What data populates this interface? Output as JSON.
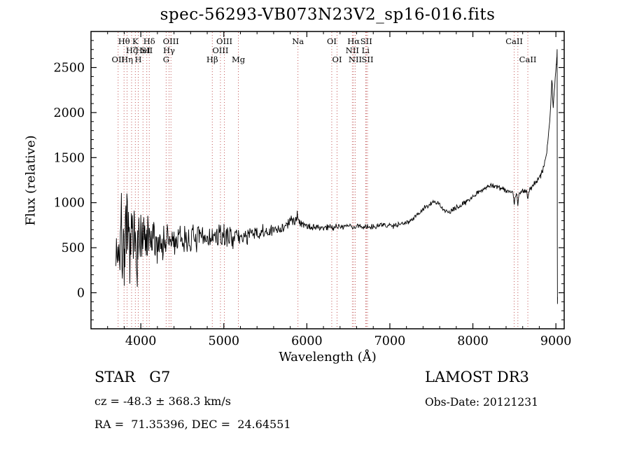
{
  "header": {
    "title": "spec-56293-VB073N23V2_sp16-016.fits"
  },
  "footer": {
    "class_label": "STAR   G7",
    "survey": "LAMOST DR3",
    "cz": "cz = -48.3 ± 368.3 km/s",
    "obs_date": "Obs-Date: 20121231",
    "radec": "RA =  71.35396, DEC =  24.64551"
  },
  "chart_data": {
    "type": "line",
    "title": "spec-56293-VB073N23V2_sp16-016.fits",
    "xlabel": "Wavelength (Å)",
    "ylabel": "Flux (relative)",
    "xlim": [
      3400,
      9100
    ],
    "ylim": [
      -400,
      2900
    ],
    "xticks": [
      4000,
      5000,
      6000,
      7000,
      8000,
      9000
    ],
    "yticks": [
      0,
      500,
      1000,
      1500,
      2000,
      2500
    ],
    "x_minor_step": 200,
    "y_minor_step": 100,
    "grid": false,
    "legend": false,
    "line_color": "#000000",
    "marker_color": "#bb4444",
    "sample_step": 6,
    "data_range": [
      3700,
      9020
    ],
    "spectral_lines": [
      {
        "wl": 3727,
        "label": "OII",
        "row": 3
      },
      {
        "wl": 3798,
        "label": "Hθ",
        "row": 1
      },
      {
        "wl": 3835,
        "label": "Hη",
        "row": 3
      },
      {
        "wl": 3889,
        "label": "Hζ",
        "row": 2
      },
      {
        "wl": 3934,
        "label": "K",
        "row": 1
      },
      {
        "wl": 3969,
        "label": "H",
        "row": 3
      },
      {
        "wl": 4026,
        "label": "HeI",
        "row": 2
      },
      {
        "wl": 4072,
        "label": "SII",
        "row": 2
      },
      {
        "wl": 4102,
        "label": "Hδ",
        "row": 1
      },
      {
        "wl": 4305,
        "label": "G",
        "row": 3
      },
      {
        "wl": 4340,
        "label": "Hγ",
        "row": 2
      },
      {
        "wl": 4363,
        "label": "OIII",
        "row": 1
      },
      {
        "wl": 4861,
        "label": "Hβ",
        "row": 3
      },
      {
        "wl": 4959,
        "label": "OIII",
        "row": 2
      },
      {
        "wl": 5007,
        "label": "OIII",
        "row": 1
      },
      {
        "wl": 5175,
        "label": "Mg",
        "row": 3
      },
      {
        "wl": 5893,
        "label": "Na",
        "row": 1
      },
      {
        "wl": 6300,
        "label": "OI",
        "row": 1
      },
      {
        "wl": 6364,
        "label": "OI",
        "row": 3
      },
      {
        "wl": 6548,
        "label": "NII",
        "row": 2
      },
      {
        "wl": 6563,
        "label": "Hα",
        "row": 1
      },
      {
        "wl": 6583,
        "label": "NII",
        "row": 3
      },
      {
        "wl": 6708,
        "label": "Li",
        "row": 2
      },
      {
        "wl": 6716,
        "label": "SII",
        "row": 1
      },
      {
        "wl": 6731,
        "label": "SII",
        "row": 3
      },
      {
        "wl": 8498,
        "label": "CaII",
        "row": 1
      },
      {
        "wl": 8542,
        "label": "",
        "row": 0
      },
      {
        "wl": 8662,
        "label": "CaII",
        "row": 3
      }
    ],
    "continuum": [
      [
        3700,
        540
      ],
      [
        3730,
        520
      ],
      [
        3760,
        545
      ],
      [
        3800,
        525
      ],
      [
        3840,
        535
      ],
      [
        3880,
        525
      ],
      [
        3920,
        540
      ],
      [
        3960,
        530
      ],
      [
        4000,
        540
      ],
      [
        4060,
        545
      ],
      [
        4120,
        550
      ],
      [
        4200,
        555
      ],
      [
        4300,
        560
      ],
      [
        4400,
        570
      ],
      [
        4500,
        580
      ],
      [
        4600,
        592
      ],
      [
        4700,
        602
      ],
      [
        4800,
        612
      ],
      [
        4860,
        605
      ],
      [
        4900,
        618
      ],
      [
        5000,
        628
      ],
      [
        5100,
        632
      ],
      [
        5175,
        612
      ],
      [
        5260,
        632
      ],
      [
        5350,
        645
      ],
      [
        5450,
        658
      ],
      [
        5550,
        672
      ],
      [
        5650,
        700
      ],
      [
        5750,
        745
      ],
      [
        5830,
        805
      ],
      [
        5880,
        845
      ],
      [
        5905,
        815
      ],
      [
        5940,
        775
      ],
      [
        5990,
        748
      ],
      [
        6060,
        728
      ],
      [
        6150,
        720
      ],
      [
        6250,
        730
      ],
      [
        6350,
        738
      ],
      [
        6450,
        737
      ],
      [
        6520,
        742
      ],
      [
        6563,
        726
      ],
      [
        6620,
        738
      ],
      [
        6700,
        732
      ],
      [
        6800,
        740
      ],
      [
        6900,
        748
      ],
      [
        7000,
        747
      ],
      [
        7100,
        758
      ],
      [
        7200,
        782
      ],
      [
        7300,
        840
      ],
      [
        7400,
        925
      ],
      [
        7480,
        980
      ],
      [
        7540,
        1005
      ],
      [
        7590,
        985
      ],
      [
        7650,
        925
      ],
      [
        7700,
        888
      ],
      [
        7760,
        915
      ],
      [
        7840,
        960
      ],
      [
        7920,
        1015
      ],
      [
        8000,
        1072
      ],
      [
        8080,
        1125
      ],
      [
        8160,
        1172
      ],
      [
        8220,
        1192
      ],
      [
        8290,
        1180
      ],
      [
        8360,
        1155
      ],
      [
        8430,
        1128
      ],
      [
        8480,
        1112
      ],
      [
        8492,
        1055
      ],
      [
        8498,
        985
      ],
      [
        8506,
        1075
      ],
      [
        8530,
        1085
      ],
      [
        8542,
        955
      ],
      [
        8554,
        1090
      ],
      [
        8600,
        1132
      ],
      [
        8645,
        1140
      ],
      [
        8662,
        1045
      ],
      [
        8672,
        1105
      ],
      [
        8700,
        1165
      ],
      [
        8740,
        1205
      ],
      [
        8780,
        1245
      ],
      [
        8820,
        1310
      ],
      [
        8860,
        1420
      ],
      [
        8895,
        1600
      ],
      [
        8920,
        1830
      ],
      [
        8938,
        2080
      ],
      [
        8948,
        2320
      ],
      [
        8953,
        2370
      ],
      [
        8960,
        2180
      ],
      [
        8968,
        2070
      ],
      [
        8978,
        2200
      ],
      [
        8988,
        2330
      ],
      [
        8998,
        2440
      ],
      [
        9006,
        2540
      ],
      [
        9012,
        2620
      ],
      [
        9015,
        2700
      ],
      [
        9017,
        600
      ],
      [
        9019,
        -120
      ],
      [
        9020,
        -60
      ]
    ],
    "noise_amplitude": [
      [
        3700,
        400
      ],
      [
        3760,
        420
      ],
      [
        3820,
        360
      ],
      [
        3880,
        330
      ],
      [
        3940,
        300
      ],
      [
        4000,
        260
      ],
      [
        4080,
        220
      ],
      [
        4160,
        190
      ],
      [
        4260,
        165
      ],
      [
        4380,
        140
      ],
      [
        4500,
        125
      ],
      [
        4650,
        112
      ],
      [
        4800,
        100
      ],
      [
        4950,
        92
      ],
      [
        5100,
        85
      ],
      [
        5250,
        75
      ],
      [
        5400,
        66
      ],
      [
        5550,
        60
      ],
      [
        5700,
        52
      ],
      [
        5850,
        46
      ],
      [
        6000,
        38
      ],
      [
        6150,
        33
      ],
      [
        6300,
        30
      ],
      [
        6500,
        27
      ],
      [
        6700,
        25
      ],
      [
        7000,
        23
      ],
      [
        7300,
        22
      ],
      [
        7600,
        21
      ],
      [
        7900,
        20
      ],
      [
        8200,
        21
      ],
      [
        8500,
        23
      ],
      [
        8700,
        26
      ],
      [
        8900,
        28
      ],
      [
        9020,
        15
      ]
    ]
  }
}
